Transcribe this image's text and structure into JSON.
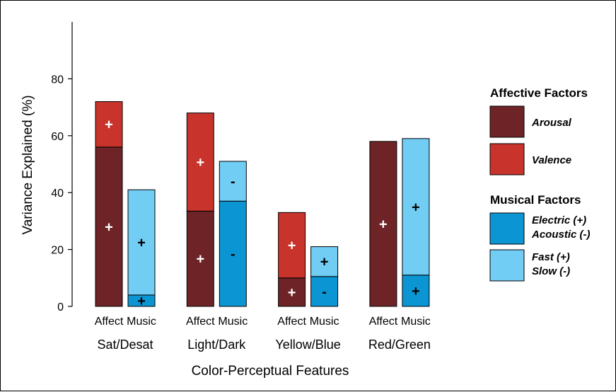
{
  "chart_data": {
    "type": "bar",
    "stacked": true,
    "xlabel": "Color-Perceptual Features",
    "ylabel": "Variance Explained (%)",
    "ylim": [
      0,
      100
    ],
    "yticks": [
      0,
      20,
      40,
      60,
      80
    ],
    "grid": false,
    "legend_position": "right",
    "groups": [
      {
        "name": "Sat/Desat",
        "bars": [
          {
            "label": "Affect",
            "segments": [
              {
                "key": "arousal",
                "value": 56,
                "sign": "+"
              },
              {
                "key": "valence",
                "value": 16,
                "sign": "+"
              }
            ]
          },
          {
            "label": "Music",
            "segments": [
              {
                "key": "electric",
                "value": 4,
                "sign": "+"
              },
              {
                "key": "fast",
                "value": 37,
                "sign": "+"
              }
            ]
          }
        ]
      },
      {
        "name": "Light/Dark",
        "bars": [
          {
            "label": "Affect",
            "segments": [
              {
                "key": "arousal",
                "value": 33.5,
                "sign": "+"
              },
              {
                "key": "valence",
                "value": 34.5,
                "sign": "+"
              }
            ]
          },
          {
            "label": "Music",
            "segments": [
              {
                "key": "electric",
                "value": 37,
                "sign": "-"
              },
              {
                "key": "fast",
                "value": 14,
                "sign": "-"
              }
            ]
          }
        ]
      },
      {
        "name": "Yellow/Blue",
        "bars": [
          {
            "label": "Affect",
            "segments": [
              {
                "key": "arousal",
                "value": 10,
                "sign": "+"
              },
              {
                "key": "valence",
                "value": 23,
                "sign": "+"
              }
            ]
          },
          {
            "label": "Music",
            "segments": [
              {
                "key": "electric",
                "value": 10.5,
                "sign": "-"
              },
              {
                "key": "fast",
                "value": 10.5,
                "sign": "+"
              }
            ]
          }
        ]
      },
      {
        "name": "Red/Green",
        "bars": [
          {
            "label": "Affect",
            "segments": [
              {
                "key": "arousal",
                "value": 58,
                "sign": "+"
              }
            ]
          },
          {
            "label": "Music",
            "segments": [
              {
                "key": "electric",
                "value": 11,
                "sign": "+"
              },
              {
                "key": "fast",
                "value": 48,
                "sign": "+"
              }
            ]
          }
        ]
      }
    ],
    "legend": [
      {
        "heading": "Affective Factors",
        "items": [
          {
            "key": "arousal",
            "lines": [
              "Arousal"
            ]
          },
          {
            "key": "valence",
            "lines": [
              "Valence"
            ]
          }
        ]
      },
      {
        "heading": "Musical Factors",
        "items": [
          {
            "key": "electric",
            "lines": [
              "Electric (+)",
              "Acoustic (-)"
            ]
          },
          {
            "key": "fast",
            "lines": [
              "Fast (+)",
              "Slow (-)"
            ]
          }
        ]
      }
    ],
    "colors": {
      "arousal": "#6e2427",
      "valence": "#c8342b",
      "electric": "#0b96d3",
      "fast": "#71cdf3"
    },
    "sign_colors": {
      "arousal": "#ffffff",
      "valence": "#ffffff",
      "electric": "#000000",
      "fast": "#000000"
    }
  }
}
